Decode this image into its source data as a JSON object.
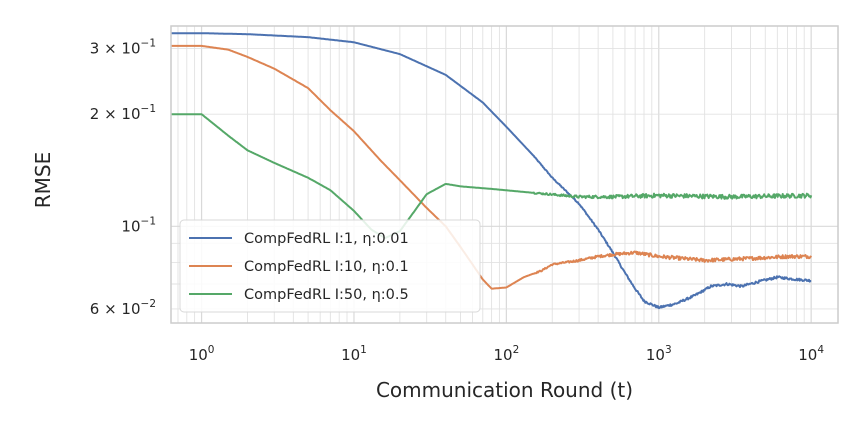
{
  "chart_data": {
    "type": "line",
    "xlabel": "Communication Round (t)",
    "ylabel": "RMSE",
    "x_scale": "log",
    "y_scale": "log",
    "xlim": [
      0.63,
      15000
    ],
    "ylim": [
      0.055,
      0.345
    ],
    "grid": true,
    "legend_position": "lower-left",
    "x_ticks": [
      {
        "value": 1,
        "base": "10",
        "exp": "0"
      },
      {
        "value": 10,
        "base": "10",
        "exp": "1"
      },
      {
        "value": 100,
        "base": "10",
        "exp": "2"
      },
      {
        "value": 1000,
        "base": "10",
        "exp": "3"
      },
      {
        "value": 10000,
        "base": "10",
        "exp": "4"
      }
    ],
    "y_ticks": [
      {
        "value": 0.06,
        "mantissa": "6",
        "times": "×",
        "base": "10",
        "exp": "−2"
      },
      {
        "value": 0.1,
        "mantissa": "",
        "times": "",
        "base": "10",
        "exp": "−1"
      },
      {
        "value": 0.2,
        "mantissa": "2",
        "times": "×",
        "base": "10",
        "exp": "−1"
      },
      {
        "value": 0.3,
        "mantissa": "3",
        "times": "×",
        "base": "10",
        "exp": "−1"
      }
    ],
    "series": [
      {
        "name": "CompFedRL I:1, η:0.01",
        "color": "#4c72b0",
        "points": [
          [
            0.63,
            0.33
          ],
          [
            1,
            0.33
          ],
          [
            2,
            0.328
          ],
          [
            5,
            0.322
          ],
          [
            10,
            0.312
          ],
          [
            20,
            0.29
          ],
          [
            40,
            0.255
          ],
          [
            70,
            0.215
          ],
          [
            100,
            0.185
          ],
          [
            150,
            0.155
          ],
          [
            200,
            0.135
          ],
          [
            300,
            0.115
          ],
          [
            400,
            0.098
          ],
          [
            500,
            0.085
          ],
          [
            600,
            0.075
          ],
          [
            700,
            0.068
          ],
          [
            800,
            0.063
          ],
          [
            1000,
            0.0605
          ],
          [
            1300,
            0.062
          ],
          [
            1700,
            0.065
          ],
          [
            2200,
            0.069
          ],
          [
            2800,
            0.07
          ],
          [
            3500,
            0.069
          ],
          [
            4500,
            0.071
          ],
          [
            6000,
            0.073
          ],
          [
            8000,
            0.072
          ],
          [
            10000,
            0.0715
          ]
        ],
        "noise": 0.007
      },
      {
        "name": "CompFedRL I:10, η:0.1",
        "color": "#dd8452",
        "points": [
          [
            0.63,
            0.305
          ],
          [
            1,
            0.305
          ],
          [
            1.5,
            0.298
          ],
          [
            2,
            0.285
          ],
          [
            3,
            0.265
          ],
          [
            5,
            0.235
          ],
          [
            7,
            0.205
          ],
          [
            10,
            0.18
          ],
          [
            15,
            0.15
          ],
          [
            20,
            0.133
          ],
          [
            30,
            0.112
          ],
          [
            40,
            0.1
          ],
          [
            50,
            0.088
          ],
          [
            60,
            0.079
          ],
          [
            70,
            0.072
          ],
          [
            80,
            0.068
          ],
          [
            100,
            0.0685
          ],
          [
            130,
            0.073
          ],
          [
            170,
            0.076
          ],
          [
            200,
            0.079
          ],
          [
            300,
            0.081
          ],
          [
            400,
            0.083
          ],
          [
            500,
            0.084
          ],
          [
            700,
            0.085
          ],
          [
            1000,
            0.083
          ],
          [
            2000,
            0.081
          ],
          [
            4000,
            0.082
          ],
          [
            7000,
            0.083
          ],
          [
            10000,
            0.083
          ]
        ],
        "noise": 0.011
      },
      {
        "name": "CompFedRL I:50, η:0.5",
        "color": "#55a868",
        "points": [
          [
            0.63,
            0.2
          ],
          [
            1,
            0.2
          ],
          [
            1.5,
            0.175
          ],
          [
            2,
            0.16
          ],
          [
            3,
            0.148
          ],
          [
            5,
            0.135
          ],
          [
            7,
            0.125
          ],
          [
            10,
            0.11
          ],
          [
            13,
            0.098
          ],
          [
            16,
            0.093
          ],
          [
            20,
            0.097
          ],
          [
            25,
            0.11
          ],
          [
            30,
            0.122
          ],
          [
            40,
            0.13
          ],
          [
            50,
            0.128
          ],
          [
            80,
            0.126
          ],
          [
            150,
            0.123
          ],
          [
            300,
            0.12
          ],
          [
            500,
            0.12
          ],
          [
            1000,
            0.121
          ],
          [
            3000,
            0.12
          ],
          [
            10000,
            0.121
          ]
        ],
        "noise": 0.013
      }
    ]
  }
}
